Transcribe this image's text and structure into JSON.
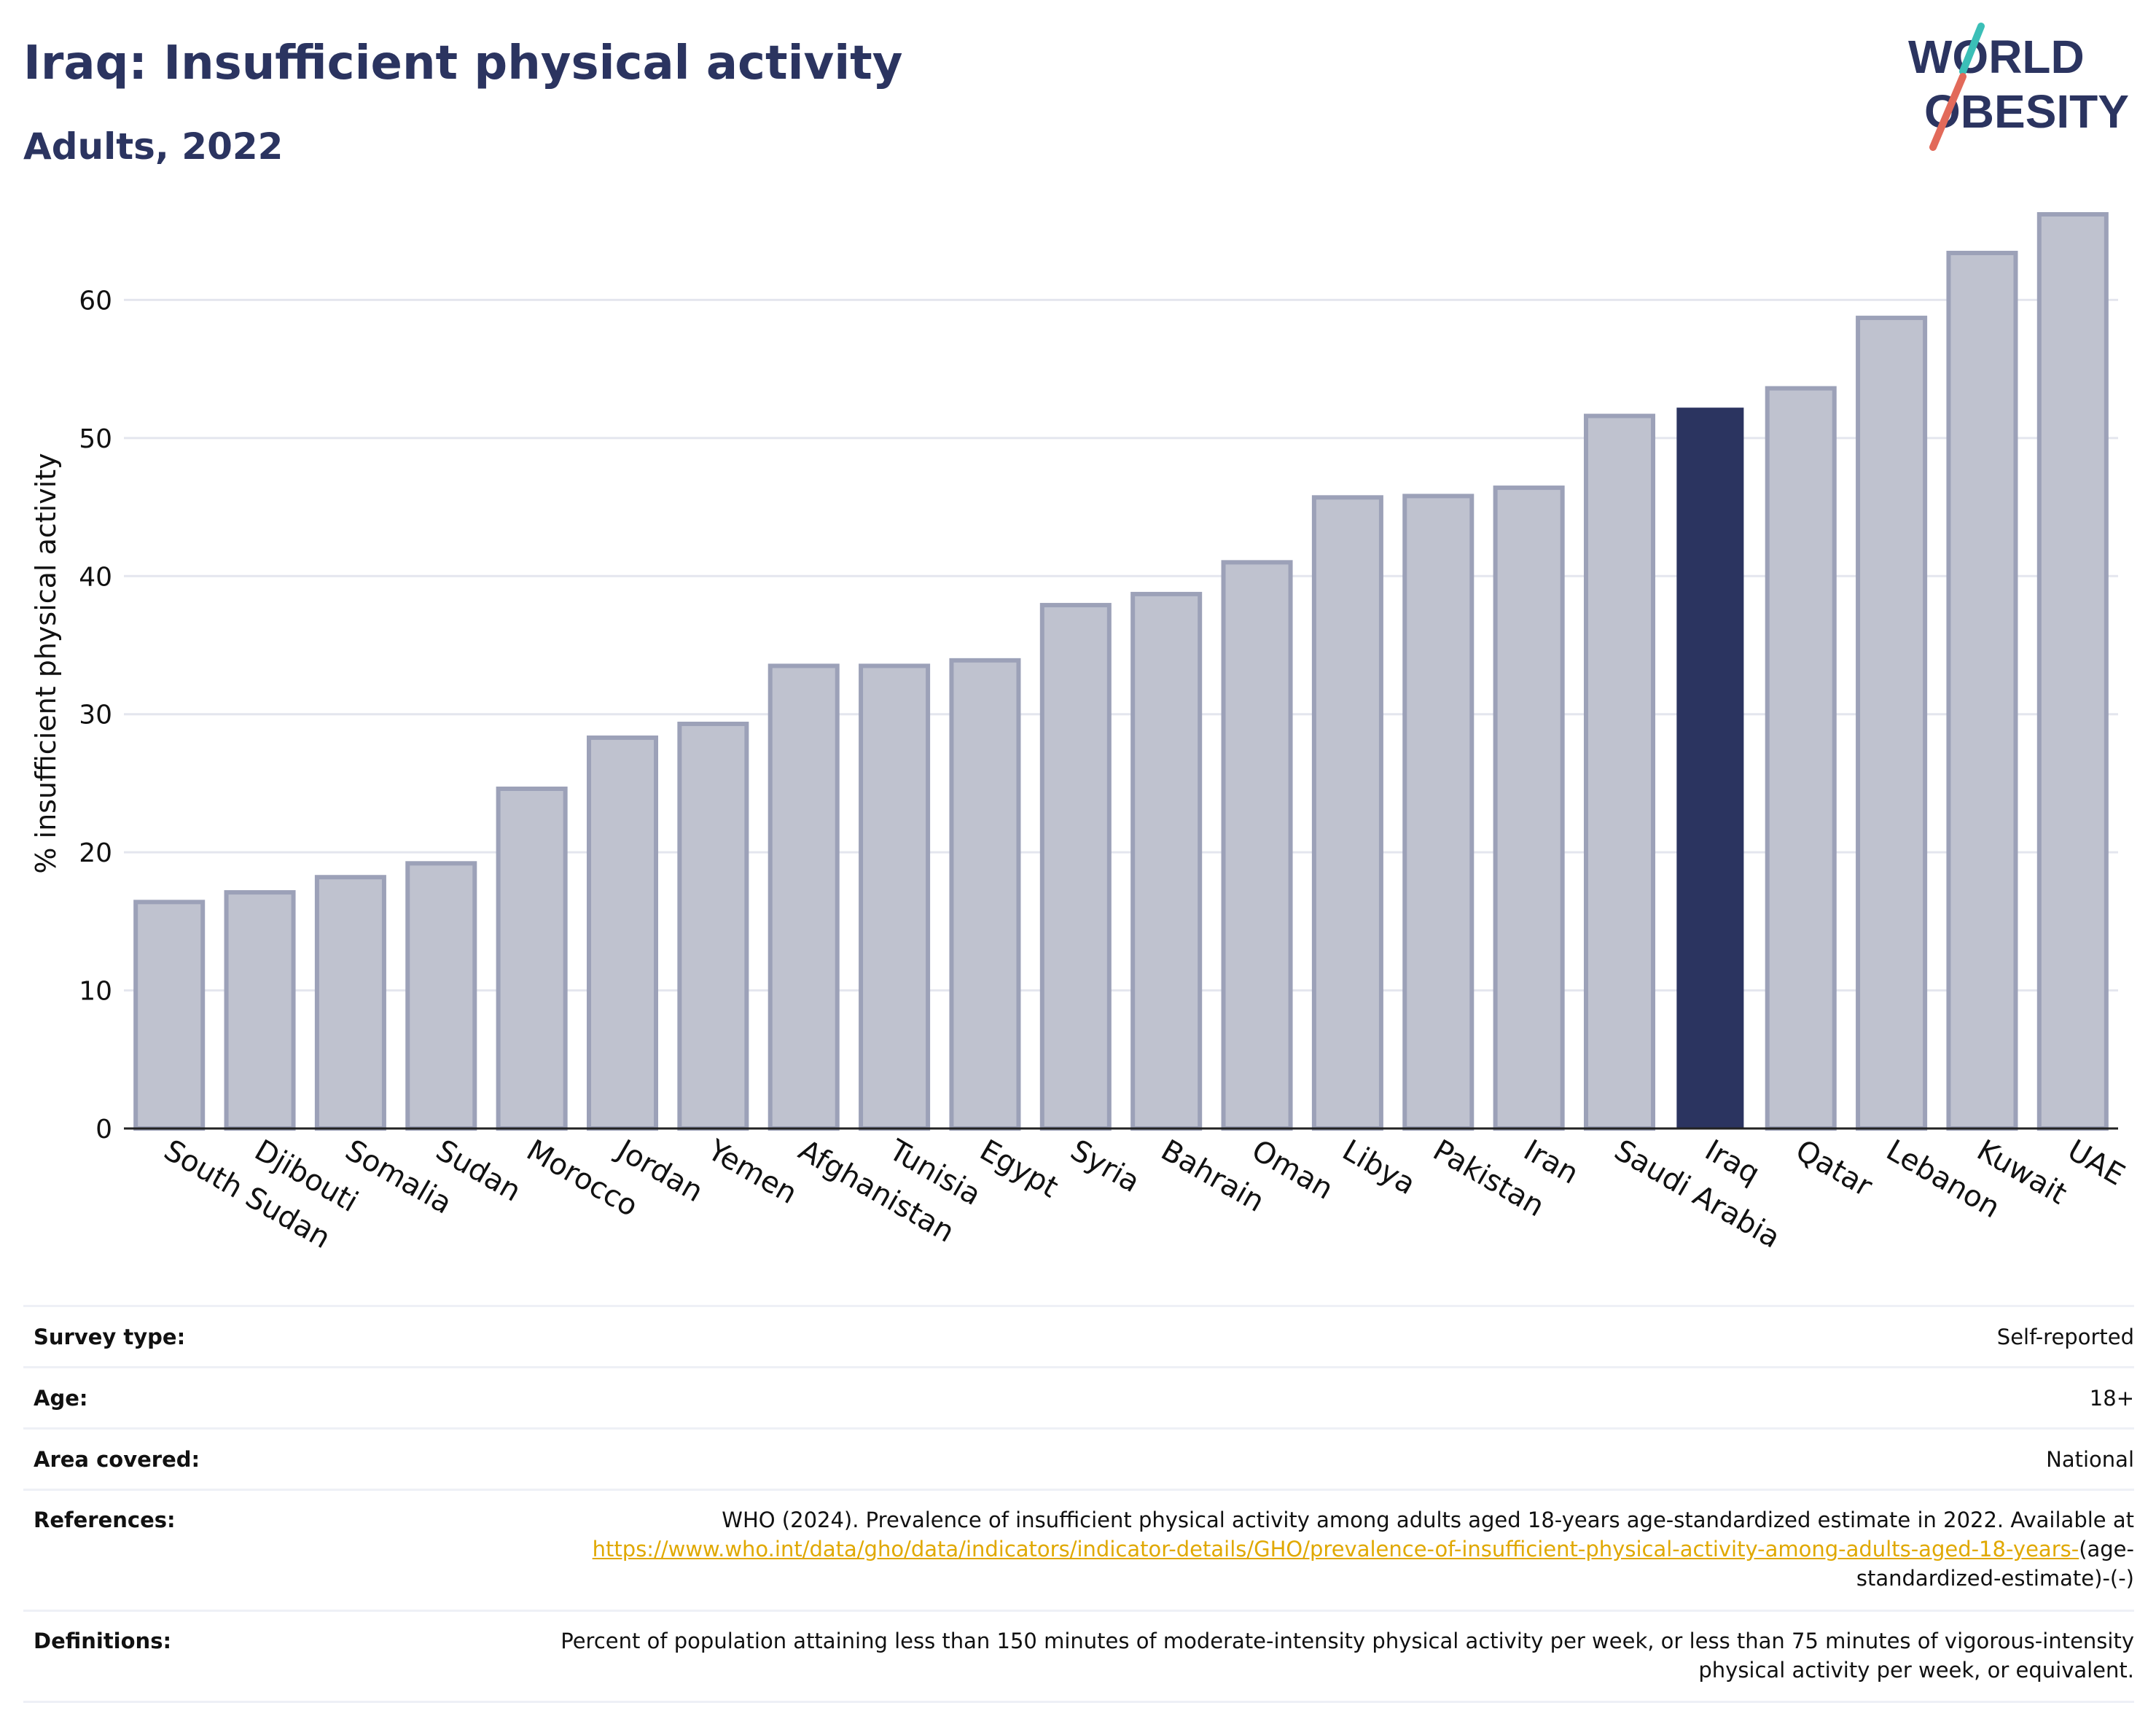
{
  "title": "Iraq: Insufficient physical activity",
  "subtitle": "Adults, 2022",
  "logo": {
    "line1": "WORLD",
    "line2": "OBESITY"
  },
  "colors": {
    "highlight": "#2b3460",
    "bar": "#bfc2cf",
    "bar_border": "#9ca1b8",
    "accent_teal": "#3bbfb7",
    "accent_coral": "#e26a5a",
    "link": "#e0a800"
  },
  "chart_data": {
    "type": "bar",
    "categories": [
      "South Sudan",
      "Djibouti",
      "Somalia",
      "Sudan",
      "Morocco",
      "Jordan",
      "Yemen",
      "Afghanistan",
      "Tunisia",
      "Egypt",
      "Syria",
      "Bahrain",
      "Oman",
      "Libya",
      "Pakistan",
      "Iran",
      "Saudi Arabia",
      "Iraq",
      "Qatar",
      "Lebanon",
      "Kuwait",
      "UAE"
    ],
    "values": [
      16.4,
      17.1,
      18.2,
      19.2,
      24.6,
      28.3,
      29.3,
      33.5,
      33.5,
      33.9,
      37.9,
      38.7,
      41.0,
      45.7,
      45.8,
      46.4,
      51.6,
      52.2,
      53.6,
      58.7,
      63.4,
      66.2
    ],
    "highlight": "Iraq",
    "ylabel": "% insufficient physical activity",
    "xlabel": "",
    "yticks": [
      0,
      10,
      20,
      30,
      40,
      50,
      60
    ],
    "ylim": [
      0,
      70
    ],
    "grid": true
  },
  "info": {
    "survey_label": "Survey type:",
    "survey_value": "Self-reported",
    "age_label": "Age:",
    "age_value": "18+",
    "area_label": "Area covered:",
    "area_value": "National",
    "ref_label": "References:",
    "ref_text1": "WHO (2024). Prevalence of insufficient physical activity among adults aged 18-years age-standardized estimate in 2022. Available at",
    "ref_link": "https://www.who.int/data/gho/data/indicators/indicator-details/GHO/prevalence-of-insufficient-physical-activity-among-adults-aged-18-years-",
    "ref_text2": "(age-standardized-estimate)-(-)",
    "def_label": "Definitions:",
    "def_text": "Percent of population attaining less than 150 minutes of moderate-intensity physical activity per week, or less than 75 minutes of vigorous-intensity physical activity per week, or equivalent."
  }
}
